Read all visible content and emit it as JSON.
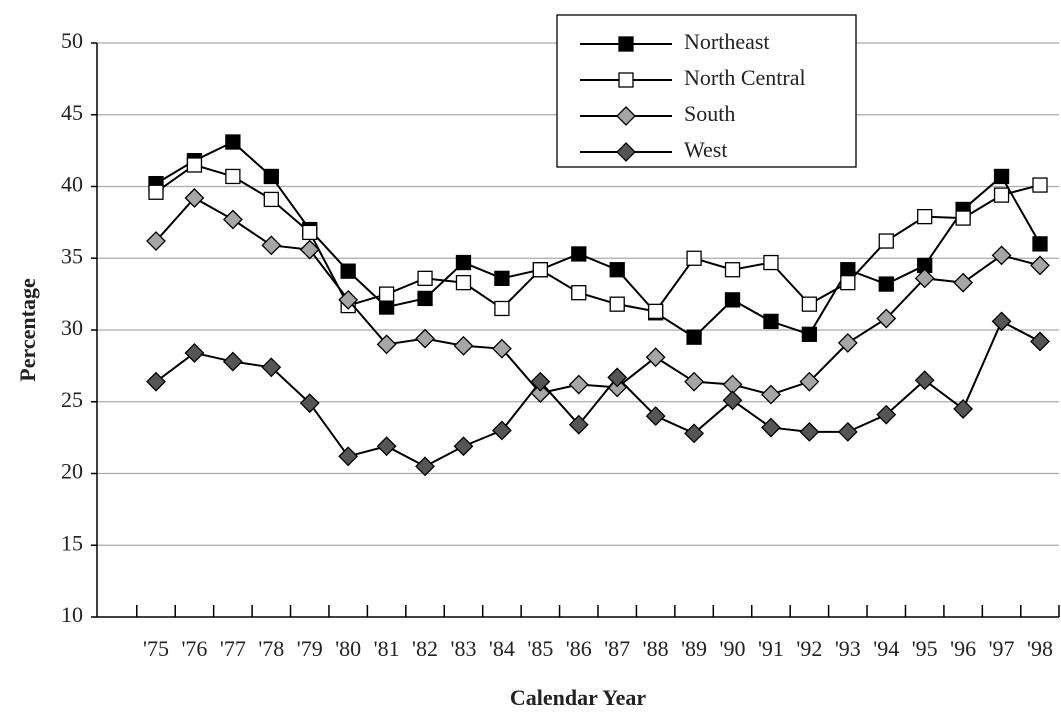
{
  "chart_data": {
    "type": "line",
    "x_label": "Calendar Year",
    "y_label": "Percentage",
    "categories": [
      "'75",
      "'76",
      "'77",
      "'78",
      "'79",
      "'80",
      "'81",
      "'82",
      "'83",
      "'84",
      "'85",
      "'86",
      "'87",
      "'88",
      "'89",
      "'90",
      "'91",
      "'92",
      "'93",
      "'94",
      "'95",
      "'96",
      "'97",
      "'98"
    ],
    "ylim": [
      10,
      50
    ],
    "yticks": [
      10,
      15,
      20,
      25,
      30,
      35,
      40,
      45,
      50
    ],
    "grid": true,
    "legend": "top-right",
    "series": [
      {
        "name": "Northeast",
        "color": "#000000",
        "marker": "square",
        "values": [
          40.2,
          41.8,
          43.1,
          40.7,
          37.0,
          34.1,
          31.6,
          32.2,
          34.7,
          33.6,
          34.2,
          35.3,
          34.2,
          31.2,
          29.5,
          32.1,
          30.6,
          29.7,
          34.2,
          33.2,
          34.5,
          38.4,
          40.7,
          36.0
        ]
      },
      {
        "name": "North Central",
        "color": "#ffffff",
        "marker": "square",
        "values": [
          39.6,
          41.5,
          40.7,
          39.1,
          36.8,
          31.7,
          32.5,
          33.6,
          33.3,
          31.5,
          34.2,
          32.6,
          31.8,
          31.3,
          35.0,
          34.2,
          34.7,
          31.8,
          33.3,
          36.2,
          37.9,
          37.8,
          39.4,
          40.1
        ]
      },
      {
        "name": "South",
        "color": "#a6a6a6",
        "marker": "diamond",
        "values": [
          36.2,
          39.2,
          37.7,
          35.9,
          35.6,
          32.1,
          29.0,
          29.4,
          28.9,
          28.7,
          25.6,
          26.2,
          26.0,
          28.1,
          26.4,
          26.2,
          25.5,
          26.4,
          29.1,
          30.8,
          33.6,
          33.3,
          35.2,
          34.5
        ]
      },
      {
        "name": "West",
        "color": "#555555",
        "marker": "diamond",
        "values": [
          26.4,
          28.4,
          27.8,
          27.4,
          24.9,
          21.2,
          21.9,
          20.5,
          21.9,
          23.0,
          26.4,
          23.4,
          26.7,
          24.0,
          22.8,
          25.1,
          23.2,
          22.9,
          22.9,
          24.1,
          26.5,
          24.5,
          30.6,
          29.2
        ]
      }
    ]
  }
}
